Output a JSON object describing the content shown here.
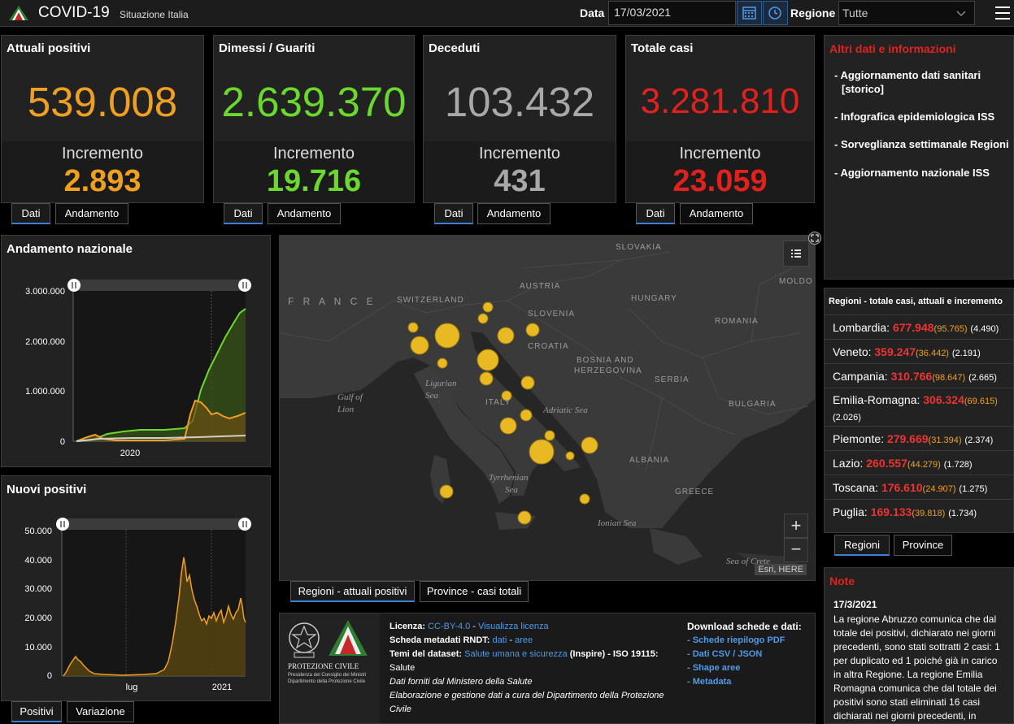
{
  "header": {
    "title": "COVID-19",
    "subtitle": "Situazione Italia",
    "date_label": "Data",
    "date_value": "17/03/2021",
    "region_label": "Regione",
    "region_value": "Tutte"
  },
  "cards": [
    {
      "title": "Attuali positivi",
      "value": "539.008",
      "inc_label": "Incremento",
      "inc": "2.893",
      "color": "#f0a020",
      "tab_dati": "Dati",
      "tab_andamento": "Andamento"
    },
    {
      "title": "Dimessi / Guariti",
      "value": "2.639.370",
      "inc_label": "Incremento",
      "inc": "19.716",
      "color": "#6ad82c",
      "tab_dati": "Dati",
      "tab_andamento": "Andamento"
    },
    {
      "title": "Deceduti",
      "value": "103.432",
      "inc_label": "Incremento",
      "inc": "431",
      "color": "#a8a8a8",
      "tab_dati": "Dati",
      "tab_andamento": "Andamento"
    },
    {
      "title": "Totale casi",
      "value": "3.281.810",
      "inc_label": "Incremento",
      "inc": "23.059",
      "color": "#e0221f",
      "tab_dati": "Dati",
      "tab_andamento": "Andamento"
    }
  ],
  "info": {
    "title": "Altri dati e informazioni",
    "links": [
      "- Aggiornamento dati sanitari",
      "[storico]",
      "- Infografica epidemiologica ISS",
      "- Sorveglianza settimanale Regioni",
      "- Aggiornamento nazionale ISS"
    ]
  },
  "regions_panel": {
    "title": "Regioni - totale casi, attuali e incremento",
    "rows": [
      {
        "name": "Lombardia:",
        "total": "677.948",
        "current": "(95.765)",
        "inc": "(4.490)"
      },
      {
        "name": "Veneto:",
        "total": "359.247",
        "current": "(36.442)",
        "inc": "(2.191)"
      },
      {
        "name": "Campania:",
        "total": "310.766",
        "current": "(98.647)",
        "inc": "(2.665)"
      },
      {
        "name": "Emilia-Romagna:",
        "total": "306.324",
        "current": "(69.615)",
        "inc": "(2.026)"
      },
      {
        "name": "Piemonte:",
        "total": "279.669",
        "current": "(31.394)",
        "inc": "(2.374)"
      },
      {
        "name": "Lazio:",
        "total": "260.557",
        "current": "(44.279)",
        "inc": "(1.728)"
      },
      {
        "name": "Toscana:",
        "total": "176.610",
        "current": "(24.907)",
        "inc": "(1.275)"
      },
      {
        "name": "Puglia:",
        "total": "169.133",
        "current": "(39.818)",
        "inc": "(1.734)"
      }
    ],
    "tab_regioni": "Regioni",
    "tab_province": "Province"
  },
  "note": {
    "title": "Note",
    "date": "17/3/2021",
    "lines": [
      "La regione Abruzzo comunica che dal",
      "totale dei positivi, dichiarato nei giorni",
      "precedenti, sono stati sottratti 2 casi: 1",
      "per duplicato ed 1 poiché già in carico",
      "in altra Regione. La regione Emilia",
      "Romagna comunica che dal totale dei",
      "positivi sono stati eliminati 16 casi",
      "dichiarati nei giorni precedenti, in"
    ]
  },
  "andamento": {
    "title": "Andamento nazionale",
    "y_ticks": [
      "3.000.000",
      "2.000.000",
      "1.000.000",
      "0"
    ],
    "x_ticks": [
      "2020"
    ]
  },
  "nuovi": {
    "title": "Nuovi positivi",
    "y_ticks": [
      "50.000",
      "40.000",
      "30.000",
      "20.000",
      "10.000",
      "0"
    ],
    "x_ticks": [
      "lug",
      "2021"
    ],
    "tab_positivi": "Positivi",
    "tab_variazione": "Variazione"
  },
  "map": {
    "labels": {
      "france": "F R A N C E",
      "switzerland": "SWITZERLAND",
      "austria": "AUSTRIA",
      "slovakia": "SLOVAKIA",
      "hungary": "HUNGARY",
      "slovenia": "SLOVENIA",
      "croatia": "CROATIA",
      "bosnia": "BOSNIA AND",
      "herzegovina": "HERZEGOVINA",
      "serbia": "SERBIA",
      "romania": "ROMANIA",
      "moldo": "MOLDO",
      "bulgaria": "BULGARIA",
      "italy": "ITALY",
      "albania": "ALBANIA",
      "greece": "GREECE",
      "gulf1": "Gulf of",
      "gulf2": "Lion",
      "ligurian1": "Ligurian",
      "ligurian2": "Sea",
      "adriatic": "Adriatic Sea",
      "tyrrhenian1": "Tyrrhenian",
      "tyrrhenian2": "Sea",
      "ionian": "Ionian Sea",
      "crete": "Sea of Crete"
    },
    "attribution": "Esri, HERE",
    "zoom_in": "+",
    "zoom_out": "−",
    "tab_regioni": "Regioni - attuali positivi",
    "tab_province": "Province - casi totali"
  },
  "footer": {
    "logo_text1": "PROTEZIONE CIVILE",
    "logo_text2": "Presidenza del Consiglio dei Ministri",
    "logo_text3": "Dipartimento della Protezione Civile",
    "licenza_label": "Licenza:",
    "licenza_link1": "CC-BY-4.0",
    "licenza_sep": " - ",
    "licenza_link2": "Visualizza licenza",
    "scheda_label": "Scheda metadati RNDT:",
    "scheda_link1": "dati",
    "scheda_link2": "aree",
    "temi_label": "Temi del dataset:",
    "temi_link": "Salute umana e sicurezza",
    "temi_rest": "(Inspire) - ISO 19115:",
    "temi_rest2": "Salute",
    "line_min": "Dati forniti dal Ministero della Salute",
    "line_elab1": "Elaborazione e gestione dati a cura del Dipartimento della Protezione",
    "line_elab2": "Civile",
    "download_title": "Download schede e dati:",
    "downloads": [
      "- Schede riepilogo PDF",
      "- Dati CSV / JSON",
      "- Shape aree",
      "- Metadata"
    ]
  },
  "colors": {
    "attuali": "#f0a020",
    "guariti": "#6ad82c",
    "deceduti": "#a8a8a8",
    "totale": "#e0221f",
    "link": "#4f9be8",
    "accent": "#3b82d6"
  }
}
